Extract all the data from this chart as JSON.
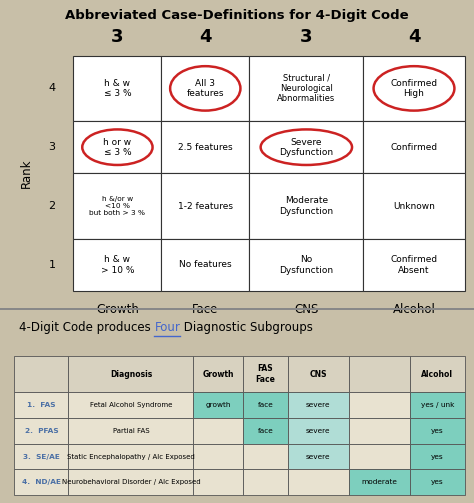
{
  "title_top": "Abbreviated Case-Definitions for 4-Digit Code",
  "title_bottom_prefix": "4-Digit Code produces ",
  "title_bottom_link": "Four",
  "title_bottom_suffix": " Diagnostic Subgroups",
  "bg_color_top": "#c8bfa8",
  "bg_color_bottom": "#cdc5ad",
  "col_headers": [
    "3",
    "4",
    "3",
    "4"
  ],
  "col_labels": [
    "Growth",
    "Face",
    "CNS",
    "Alcohol"
  ],
  "row_ranks": [
    4,
    3,
    2,
    1
  ],
  "grid_data": [
    [
      "h & w\n≤ 3 %",
      "All 3\nfeatures",
      "Structural /\nNeurological\nAbnormalities",
      "Confirmed\nHigh"
    ],
    [
      "h or w\n≤ 3 %",
      "2.5 features",
      "Severe\nDysfunction",
      "Confirmed"
    ],
    [
      "h &/or w\n<10 %\nbut both > 3 %",
      "1-2 features",
      "Moderate\nDysfunction",
      "Unknown"
    ],
    [
      "h & w\n> 10 %",
      "No features",
      "No\nDysfunction",
      "Confirmed\nAbsent"
    ]
  ],
  "circle_cells": [
    [
      0,
      1
    ],
    [
      1,
      0
    ],
    [
      1,
      2
    ],
    [
      0,
      3
    ]
  ],
  "diag_rows": [
    [
      "1.  FAS",
      "Fetal Alcohol Syndrome",
      "growth",
      "face",
      "severe",
      "",
      "yes / unk"
    ],
    [
      "2.  PFAS",
      "Partial FAS",
      "",
      "face",
      "severe",
      "",
      "yes"
    ],
    [
      "3.  SE/AE",
      "Static Encephalopathy / Alc Exposed",
      "",
      "",
      "severe",
      "",
      "yes"
    ],
    [
      "4.  ND/AE",
      "Neurobehavioral Disorder / Alc Exposed",
      "",
      "",
      "",
      "moderate",
      "yes"
    ]
  ],
  "teal_color": "#7dcfbe",
  "teal_light": "#b0ddd6",
  "diag_label_color": "#4a6fa5",
  "red_circle_color": "#cc2222",
  "link_color": "#4466cc"
}
